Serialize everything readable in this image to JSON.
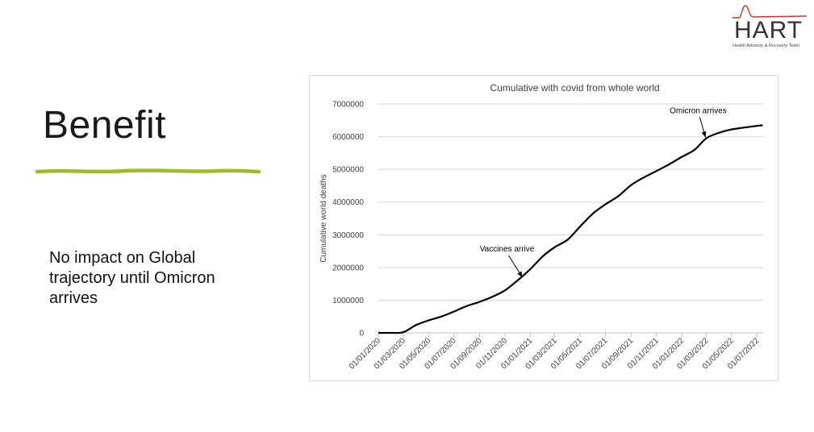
{
  "slide": {
    "title": "Benefit",
    "body": "No impact on Global trajectory until Omicron arrives",
    "accent_color": "#9bbb2a"
  },
  "logo": {
    "word": "HART",
    "subtitle": "Health Advisory & Recovery Team",
    "line_color": "#c0392b"
  },
  "chart_data": {
    "type": "line",
    "title": "Cumulative with covid from whole world",
    "xlabel": "",
    "ylabel": "Cumulative world deaths",
    "ylim": [
      0,
      7000000
    ],
    "yticks": [
      0,
      1000000,
      2000000,
      3000000,
      4000000,
      5000000,
      6000000,
      7000000
    ],
    "ytick_labels": [
      "0",
      "1000000",
      "2000000",
      "3000000",
      "4000000",
      "5000000",
      "6000000",
      "7000000"
    ],
    "xticks": [
      "01/01/2020",
      "01/03/2020",
      "01/05/2020",
      "01/07/2020",
      "01/09/2020",
      "01/11/2020",
      "01/01/2021",
      "01/03/2021",
      "01/05/2021",
      "01/07/2021",
      "01/09/2021",
      "01/11/2021",
      "01/01/2022",
      "01/03/2022",
      "01/05/2022",
      "01/07/2022"
    ],
    "grid": "horizontal",
    "series": [
      {
        "color": "#000000",
        "x": [
          "01/01/2020",
          "01/02/2020",
          "01/03/2020",
          "01/04/2020",
          "01/05/2020",
          "01/06/2020",
          "01/07/2020",
          "01/08/2020",
          "01/09/2020",
          "01/10/2020",
          "01/11/2020",
          "01/12/2020",
          "01/01/2021",
          "01/02/2021",
          "01/03/2021",
          "01/04/2021",
          "01/05/2021",
          "01/06/2021",
          "01/07/2021",
          "01/08/2021",
          "01/09/2021",
          "01/10/2021",
          "01/11/2021",
          "01/12/2021",
          "01/01/2022",
          "01/02/2022",
          "01/03/2022",
          "01/04/2022",
          "01/05/2022",
          "01/06/2022",
          "01/07/2022",
          "15/07/2022"
        ],
        "values": [
          0,
          0,
          20000,
          240000,
          380000,
          500000,
          650000,
          820000,
          950000,
          1100000,
          1300000,
          1600000,
          1950000,
          2350000,
          2620000,
          2850000,
          3250000,
          3650000,
          3930000,
          4180000,
          4520000,
          4750000,
          4950000,
          5150000,
          5380000,
          5600000,
          5950000,
          6120000,
          6220000,
          6280000,
          6330000,
          6350000
        ]
      }
    ],
    "annotations": [
      {
        "text": "Vaccines arrive",
        "x": "15/12/2020",
        "y": 1650000
      },
      {
        "text": "Omicron arrives",
        "x": "01/03/2022",
        "y": 5930000
      }
    ]
  }
}
